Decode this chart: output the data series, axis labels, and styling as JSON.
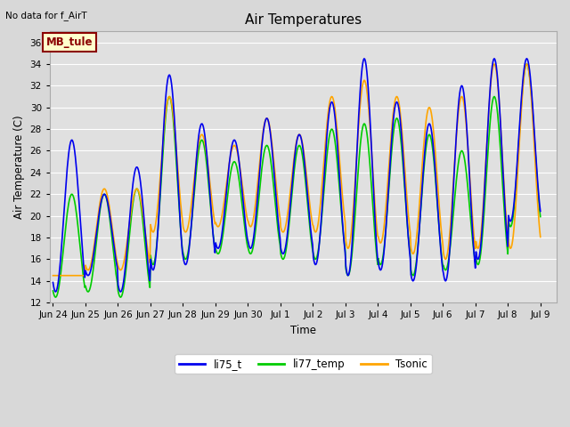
{
  "title": "Air Temperatures",
  "xlabel": "Time",
  "ylabel": "Air Temperature (C)",
  "no_data_text": "No data for f_AirT",
  "annotation_text": "MB_tule",
  "ylim": [
    12,
    37
  ],
  "yticks": [
    12,
    14,
    16,
    18,
    20,
    22,
    24,
    26,
    28,
    30,
    32,
    34,
    36
  ],
  "series": {
    "li75_t": {
      "color": "#0000ee",
      "lw": 1.2
    },
    "li77_temp": {
      "color": "#00cc00",
      "lw": 1.2
    },
    "Tsonic": {
      "color": "#ffa500",
      "lw": 1.2
    }
  },
  "bg_color": "#d8d8d8",
  "plot_bg": "#e0e0e0",
  "grid_color": "#ffffff",
  "xlim": [
    -0.1,
    15.5
  ],
  "tick_labels": [
    "Jun 24",
    "Jun 25",
    "Jun 26",
    "Jun 27",
    "Jun 28",
    "Jun 29",
    "Jun 30",
    "Jul 1",
    "Jul 2",
    "Jul 3",
    "Jul 4",
    "Jul 5",
    "Jul 6",
    "Jul 7",
    "Jul 8",
    "Jul 9"
  ],
  "tick_positions": [
    0,
    1,
    2,
    3,
    4,
    5,
    6,
    7,
    8,
    9,
    10,
    11,
    12,
    13,
    14,
    15
  ],
  "day_peaks_blue": [
    27.0,
    22.0,
    24.5,
    33.0,
    28.5,
    27.0,
    29.0,
    27.5,
    30.5,
    34.5,
    30.5,
    28.5,
    32.0,
    34.5,
    34.5
  ],
  "day_troughs_blue": [
    13.0,
    14.5,
    13.0,
    15.0,
    15.5,
    17.0,
    17.0,
    16.5,
    15.5,
    14.5,
    15.0,
    14.0,
    14.0,
    16.0,
    19.5
  ],
  "day_peaks_green": [
    22.0,
    22.0,
    22.5,
    31.0,
    27.0,
    25.0,
    26.5,
    26.5,
    28.0,
    28.5,
    29.0,
    27.5,
    26.0,
    31.0,
    34.0
  ],
  "day_troughs_green": [
    12.5,
    13.0,
    12.5,
    15.5,
    16.0,
    16.5,
    16.5,
    16.0,
    16.0,
    14.5,
    15.5,
    14.5,
    15.0,
    15.5,
    19.0
  ],
  "day_peaks_orange": [
    14.5,
    22.5,
    22.5,
    31.0,
    27.5,
    26.5,
    29.0,
    27.5,
    31.0,
    32.5,
    31.0,
    30.0,
    31.0,
    34.0,
    34.0
  ],
  "day_troughs_orange": [
    14.5,
    15.0,
    15.0,
    18.5,
    18.5,
    19.0,
    19.0,
    18.5,
    18.5,
    17.0,
    17.5,
    16.5,
    16.0,
    17.0,
    17.0
  ],
  "peak_hour": 0.58,
  "trough_hour": 0.25,
  "n_points_per_day": 48,
  "n_days": 15
}
